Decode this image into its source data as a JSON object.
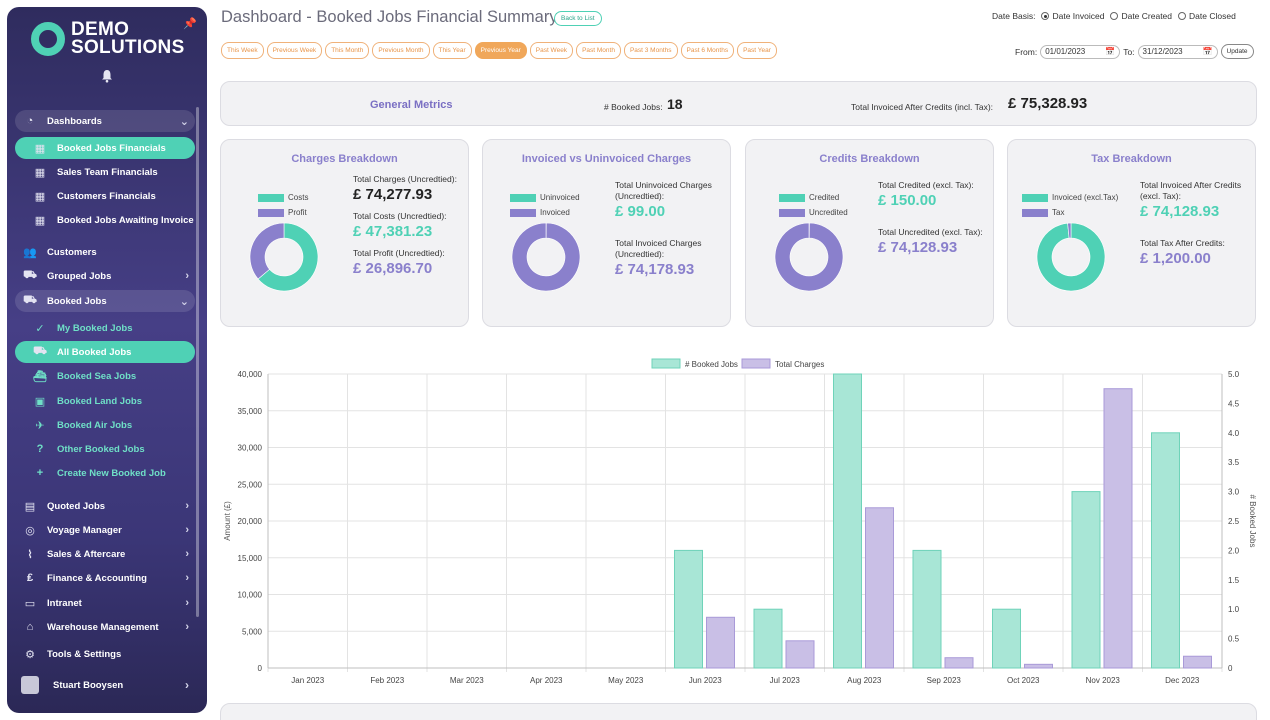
{
  "sidebar": {
    "logo_line1": "DEMO",
    "logo_line2": "SOLUTIONS",
    "items": [
      {
        "label": "Dashboards",
        "icon": "gauge-icon",
        "kind": "group",
        "chev": "⌄"
      },
      {
        "label": "Booked Jobs Financials",
        "icon": "table-icon",
        "kind": "active-sub"
      },
      {
        "label": "Sales Team Financials",
        "icon": "table-icon",
        "kind": "sub"
      },
      {
        "label": "Customers Financials",
        "icon": "table-icon",
        "kind": "sub"
      },
      {
        "label": "Booked Jobs Awaiting Invoice",
        "icon": "table-icon",
        "kind": "sub"
      },
      {
        "label": "Customers",
        "icon": "users-icon",
        "kind": "top"
      },
      {
        "label": "Grouped Jobs",
        "icon": "truck-icon",
        "kind": "top",
        "chev": "›"
      },
      {
        "label": "Booked Jobs",
        "icon": "shipping-icon",
        "kind": "group",
        "chev": "⌄"
      },
      {
        "label": "My Booked Jobs",
        "icon": "user-check-icon",
        "kind": "teal-sub"
      },
      {
        "label": "All Booked Jobs",
        "icon": "shipping-icon",
        "kind": "active-sub"
      },
      {
        "label": "Booked Sea Jobs",
        "icon": "ship-icon",
        "kind": "teal-sub"
      },
      {
        "label": "Booked Land Jobs",
        "icon": "bus-icon",
        "kind": "teal-sub"
      },
      {
        "label": "Booked Air Jobs",
        "icon": "plane-icon",
        "kind": "teal-sub"
      },
      {
        "label": "Other Booked Jobs",
        "icon": "question-icon",
        "kind": "teal-sub"
      },
      {
        "label": "Create New Booked Job",
        "icon": "plus-icon",
        "kind": "teal-sub"
      },
      {
        "label": "Quoted Jobs",
        "icon": "file-icon",
        "kind": "top",
        "chev": "›"
      },
      {
        "label": "Voyage Manager",
        "icon": "compass-icon",
        "kind": "top",
        "chev": "›"
      },
      {
        "label": "Sales & Aftercare",
        "icon": "chart-line-icon",
        "kind": "top",
        "chev": "›"
      },
      {
        "label": "Finance & Accounting",
        "icon": "money-bag-icon",
        "kind": "top",
        "chev": "›"
      },
      {
        "label": "Intranet",
        "icon": "folder-icon",
        "kind": "top",
        "chev": "›"
      },
      {
        "label": "Warehouse Management",
        "icon": "warehouse-icon",
        "kind": "top",
        "chev": "›"
      },
      {
        "label": "Tools & Settings",
        "icon": "gear-icon",
        "kind": "top"
      }
    ],
    "user_name": "Stuart Booysen"
  },
  "header": {
    "title": "Dashboard - Booked Jobs Financial Summary",
    "back_label": "Back to List",
    "date_basis_label": "Date Basis:",
    "date_basis_options": [
      "Date Invoiced",
      "Date Created",
      "Date Closed"
    ],
    "date_basis_selected": "Date Invoiced",
    "periods": [
      "This Week",
      "Previous Week",
      "This Month",
      "Previous Month",
      "This Year",
      "Previous Year",
      "Past Week",
      "Past Month",
      "Past 3 Months",
      "Past 6 Months",
      "Past Year"
    ],
    "period_selected": "Previous Year",
    "from_label": "From:",
    "from_value": "01/01/2023",
    "to_label": "To:",
    "to_value": "31/12/2023",
    "update_label": "Update"
  },
  "metrics": {
    "title": "General Metrics",
    "booked_jobs_label": "# Booked Jobs:",
    "booked_jobs_value": "18",
    "total_invoiced_label": "Total Invoiced After Credits (incl. Tax):",
    "total_invoiced_value": "£ 75,328.93"
  },
  "cards": [
    {
      "title": "Charges Breakdown",
      "legend": [
        {
          "label": "Costs",
          "color": "#4fd1b5"
        },
        {
          "label": "Profit",
          "color": "#8a80cc"
        }
      ],
      "donut": [
        {
          "value": 47381.23,
          "color": "#4fd1b5"
        },
        {
          "value": 26896.7,
          "color": "#8a80cc"
        }
      ],
      "stats": [
        {
          "label": "Total Charges (Uncredtied):",
          "value": "£ 74,277.93",
          "tone": "dark"
        },
        {
          "label": "Total Costs (Uncredtied):",
          "value": "£ 47,381.23",
          "tone": "teal"
        },
        {
          "label": "Total Profit (Uncredtied):",
          "value": "£ 26,896.70",
          "tone": "purple"
        }
      ]
    },
    {
      "title": "Invoiced vs Uninvoiced Charges",
      "legend": [
        {
          "label": "Uninvoiced",
          "color": "#4fd1b5"
        },
        {
          "label": "Invoiced",
          "color": "#8a80cc"
        }
      ],
      "donut": [
        {
          "value": 99.0,
          "color": "#4fd1b5"
        },
        {
          "value": 74178.93,
          "color": "#8a80cc"
        }
      ],
      "stats": [
        {
          "label": "Total Uninvoiced Charges (Uncredtied):",
          "value": "£ 99.00",
          "tone": "teal"
        },
        {
          "label": "Total Invoiced Charges (Uncredtied):",
          "value": "£ 74,178.93",
          "tone": "purple"
        }
      ]
    },
    {
      "title": "Credits Breakdown",
      "legend": [
        {
          "label": "Credited",
          "color": "#4fd1b5"
        },
        {
          "label": "Uncredited",
          "color": "#8a80cc"
        }
      ],
      "donut": [
        {
          "value": 150.0,
          "color": "#4fd1b5"
        },
        {
          "value": 74128.93,
          "color": "#8a80cc"
        }
      ],
      "stats": [
        {
          "label": "Total Credited (excl. Tax):",
          "value": "£ 150.00",
          "tone": "teal"
        },
        {
          "label": "Total Uncredited (excl. Tax):",
          "value": "£ 74,128.93",
          "tone": "purple"
        }
      ]
    },
    {
      "title": "Tax Breakdown",
      "legend": [
        {
          "label": "Invoiced (excl.Tax)",
          "color": "#4fd1b5"
        },
        {
          "label": "Tax",
          "color": "#8a80cc"
        }
      ],
      "donut": [
        {
          "value": 74128.93,
          "color": "#4fd1b5"
        },
        {
          "value": 1200.0,
          "color": "#8a80cc"
        }
      ],
      "stats": [
        {
          "label": "Total Invoiced After Credits (excl. Tax):",
          "value": "£ 74,128.93",
          "tone": "teal"
        },
        {
          "label": "Total Tax After Credits:",
          "value": "£ 1,200.00",
          "tone": "purple"
        }
      ]
    }
  ],
  "chart_data": {
    "type": "bar",
    "categories": [
      "Jan 2023",
      "Feb 2023",
      "Mar 2023",
      "Apr 2023",
      "May 2023",
      "Jun 2023",
      "Jul 2023",
      "Aug 2023",
      "Sep 2023",
      "Oct 2023",
      "Nov 2023",
      "Dec 2023"
    ],
    "series": [
      {
        "name": "# Booked Jobs",
        "axis": "right",
        "color": "#a8e6d6",
        "border": "#6fd3b9",
        "values": [
          0,
          0,
          0,
          0,
          0,
          2,
          1,
          5,
          2,
          1,
          3,
          4
        ]
      },
      {
        "name": "Total Charges",
        "axis": "left",
        "color": "#c9bfe6",
        "border": "#a99ad8",
        "values": [
          0,
          0,
          0,
          0,
          0,
          6900,
          3700,
          21800,
          1400,
          500,
          38000,
          1600
        ]
      }
    ],
    "ylabel": "Amount (£)",
    "y2label": "# Booked Jobs",
    "ylim": [
      0,
      40000
    ],
    "yticks": [
      "0",
      "5,000",
      "10,000",
      "15,000",
      "20,000",
      "25,000",
      "30,000",
      "35,000",
      "40,000"
    ],
    "y2lim": [
      0,
      5
    ],
    "y2ticks": [
      "0",
      "0.5",
      "1.0",
      "1.5",
      "2.0",
      "2.5",
      "3.0",
      "3.5",
      "4.0",
      "4.5",
      "5.0"
    ],
    "legend_position": "top-center"
  }
}
